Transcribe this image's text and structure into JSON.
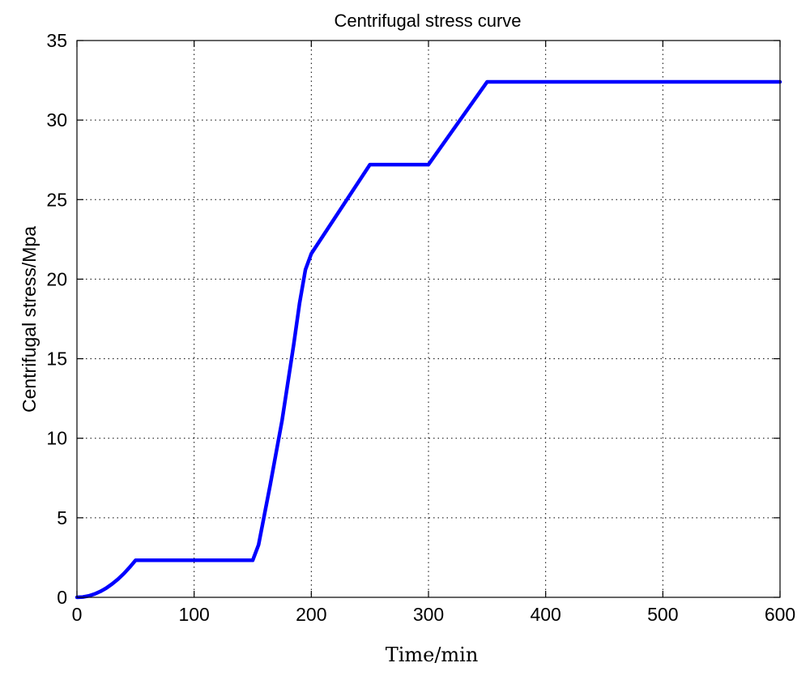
{
  "chart_data": {
    "type": "line",
    "title": "Centrifugal stress curve",
    "xlabel": "Time/min",
    "ylabel": "Centrifugal stress/Mpa",
    "xlim": [
      0,
      600
    ],
    "ylim": [
      0,
      35
    ],
    "xticks": [
      0,
      100,
      200,
      300,
      400,
      500,
      600
    ],
    "yticks": [
      0,
      5,
      10,
      15,
      20,
      25,
      30,
      35
    ],
    "grid": true,
    "series": [
      {
        "color": "#0000ff",
        "x": [
          0,
          5,
          10,
          15,
          20,
          25,
          30,
          35,
          40,
          45,
          50,
          150,
          155,
          160,
          165,
          170,
          175,
          180,
          185,
          190,
          195,
          200,
          250,
          300,
          350,
          600
        ],
        "y": [
          0.0,
          0.02,
          0.09,
          0.21,
          0.37,
          0.58,
          0.84,
          1.14,
          1.49,
          1.89,
          2.33,
          2.33,
          3.3,
          5.2,
          7.1,
          9.1,
          11.1,
          13.5,
          15.9,
          18.5,
          20.6,
          21.6,
          27.2,
          27.2,
          32.4,
          32.4
        ]
      }
    ]
  }
}
